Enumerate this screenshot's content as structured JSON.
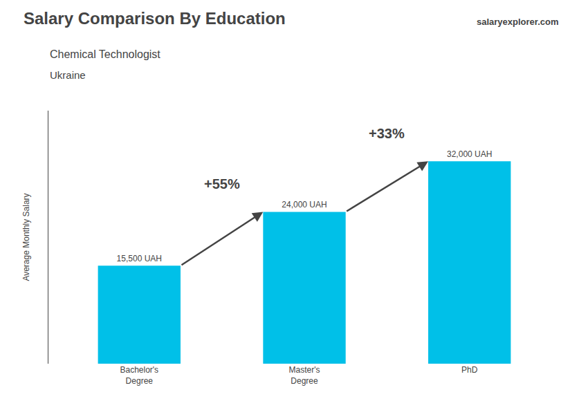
{
  "chart_data": {
    "type": "bar",
    "title": "Salary Comparison By Education",
    "subtitle": [
      "Chemical Technologist",
      "Ukraine"
    ],
    "ylabel": "Average Monthly Salary",
    "categories": [
      "Bachelor's\nDegree",
      "Master's\nDegree",
      "PhD"
    ],
    "values": [
      15500,
      24000,
      32000
    ],
    "value_labels": [
      "15,500 UAH",
      "24,000 UAH",
      "32,000 UAH"
    ],
    "data_labels": true,
    "color": "#00C0E8",
    "ylim": [
      0,
      40000
    ],
    "yticks": [],
    "tick_labels": "x",
    "grid": false,
    "annotations": [
      {
        "text": "+55%",
        "from": "Bachelor's\nDegree",
        "to": "Master's\nDegree"
      },
      {
        "text": "+33%",
        "from": "Master's\nDegree",
        "to": "PhD"
      },
      {
        "text": "salaryexplorer.com"
      }
    ]
  }
}
